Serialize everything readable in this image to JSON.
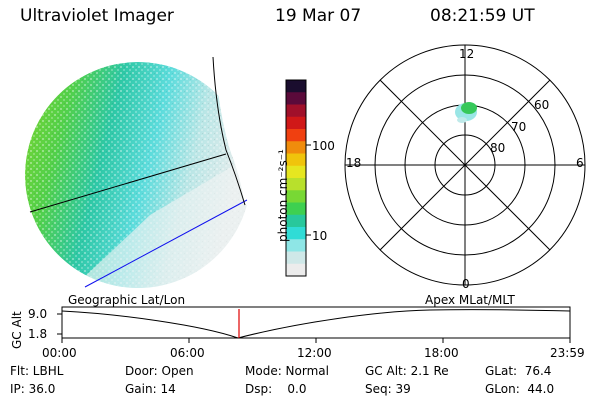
{
  "header": {
    "instrument": "Ultraviolet Imager",
    "date": "19 Mar 07",
    "time": "08:21:59 UT"
  },
  "colorbar": {
    "unit_label": "photon cm⁻²s⁻¹",
    "ticks": [
      "100",
      "10"
    ],
    "colors": [
      "#1a0d2e",
      "#5a0a3a",
      "#a0102a",
      "#d01818",
      "#f04010",
      "#f08c0c",
      "#f0c40c",
      "#e6e620",
      "#b8e02c",
      "#78d834",
      "#3ed050",
      "#28c89c",
      "#30dcd6",
      "#8ee6e6",
      "#cfe8e8",
      "#ececec"
    ]
  },
  "panels": {
    "left_label": "Geographic Lat/Lon",
    "right_label": "Apex  MLat/MLT"
  },
  "polar_plot": {
    "mlt_labels": [
      "12",
      "18",
      "6",
      "0"
    ],
    "lat_labels": [
      "60",
      "70",
      "80"
    ]
  },
  "altitude_strip": {
    "axis_label": "GC Alt",
    "y_ticks": [
      "9.0",
      "1.8"
    ],
    "x_ticks": [
      "00:00",
      "06:00",
      "12:00",
      "18:00",
      "23:59"
    ],
    "marker_color": "#e00000"
  },
  "status": {
    "row1": [
      {
        "key": "filter",
        "text": "Flt: LBHL"
      },
      {
        "key": "door",
        "text": "Door: Open"
      },
      {
        "key": "mode",
        "text": "Mode: Normal"
      },
      {
        "key": "gc_alt",
        "text": "GC Alt: 2.1 Re"
      },
      {
        "key": "glat",
        "text": "GLat:  76.4"
      }
    ],
    "row2": [
      {
        "key": "ip",
        "text": "IP: 36.0"
      },
      {
        "key": "gain",
        "text": "Gain: 14"
      },
      {
        "key": "dsp",
        "text": "Dsp:    0.0"
      },
      {
        "key": "seq",
        "text": "Seq: 39"
      },
      {
        "key": "glon",
        "text": "GLon:  44.0"
      }
    ]
  }
}
